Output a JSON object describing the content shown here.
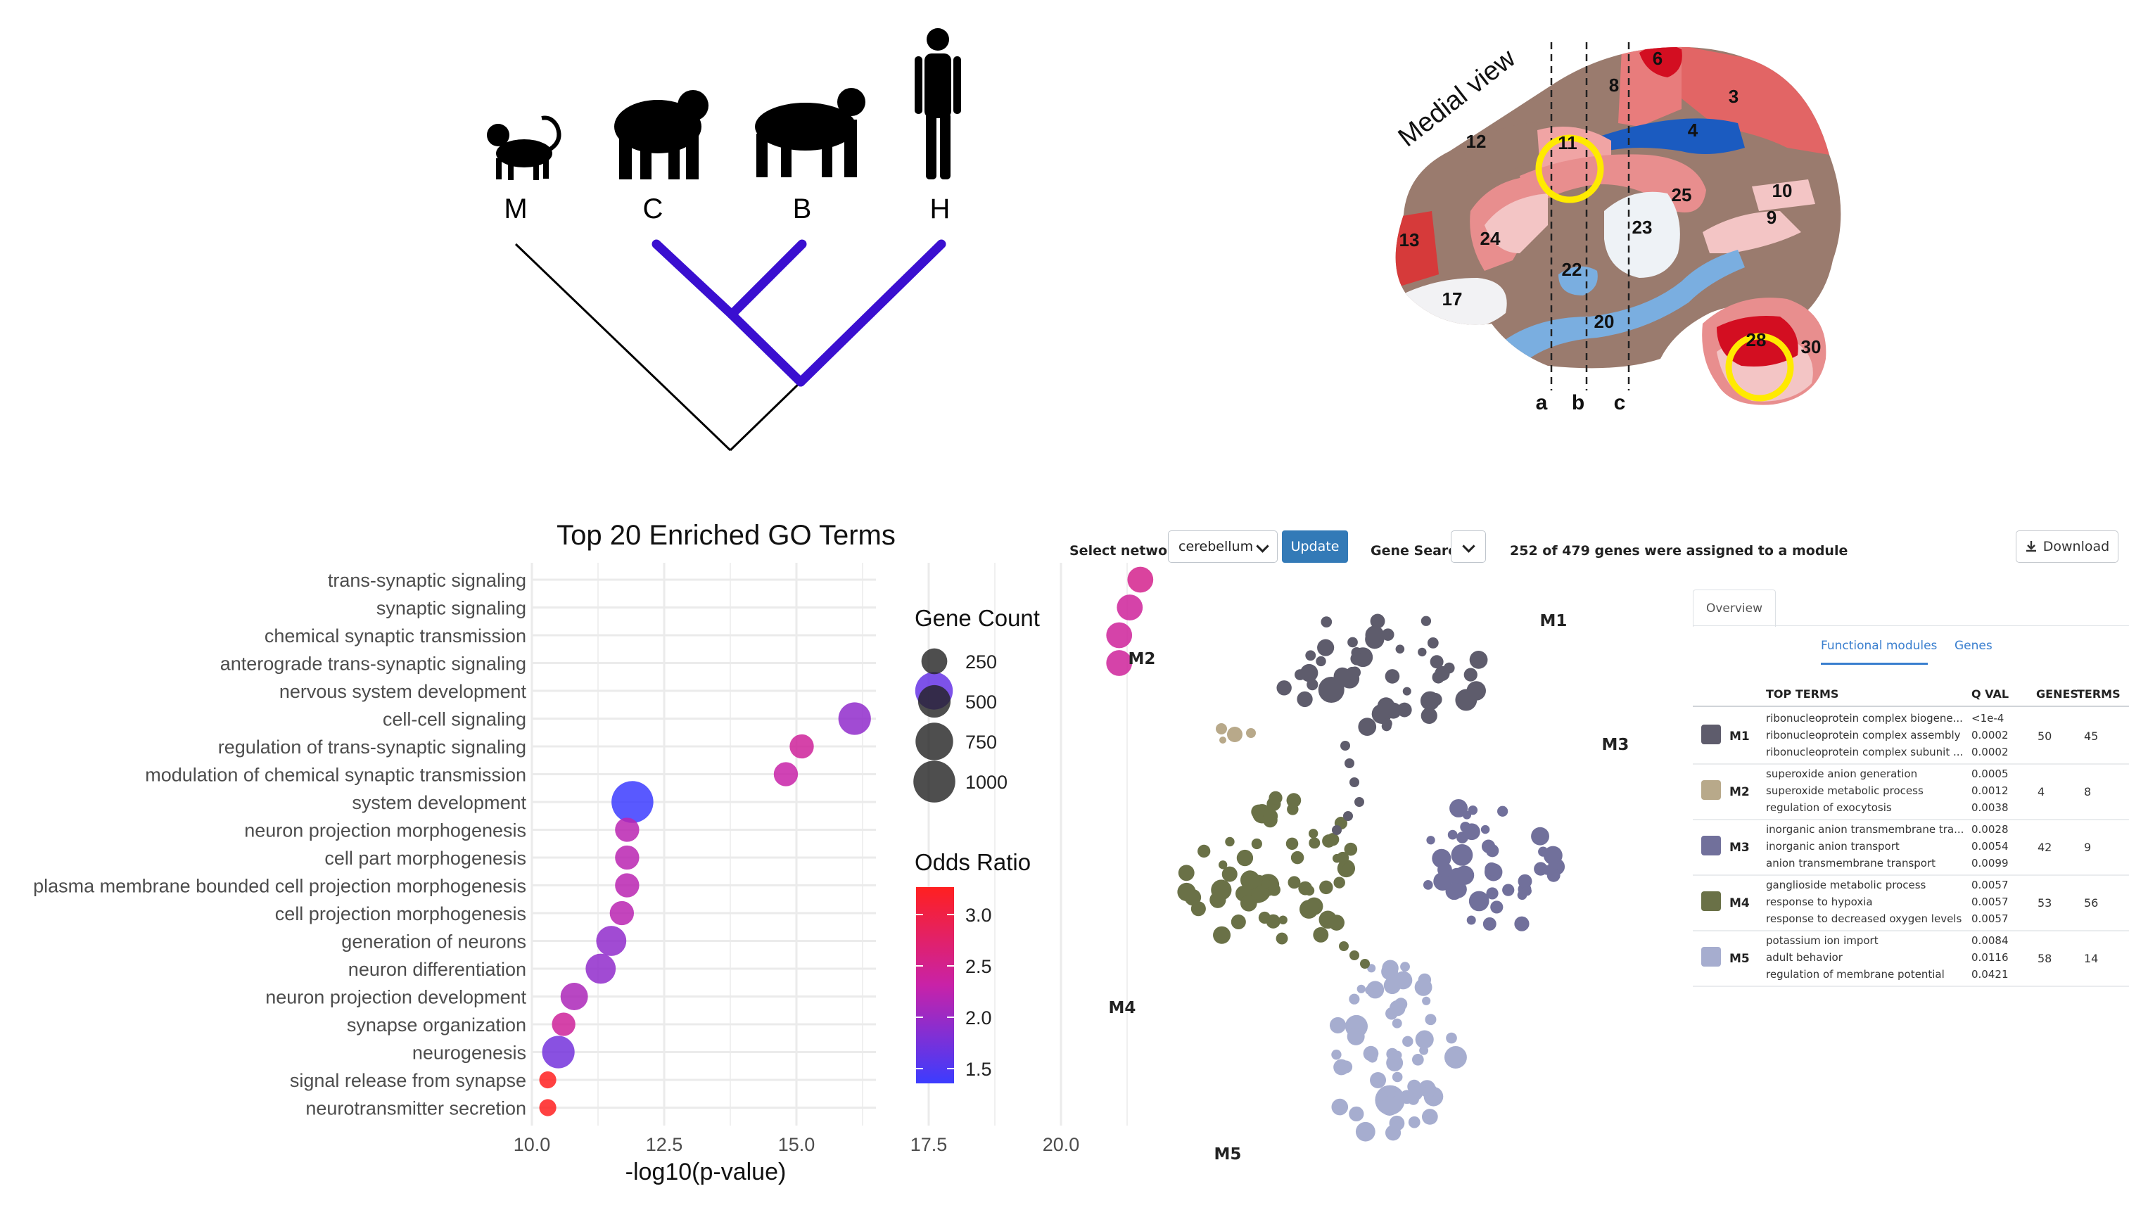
{
  "phylogeny": {
    "species": [
      "M",
      "C",
      "B",
      "H"
    ],
    "highlight_color": "#3a0fd0"
  },
  "brain": {
    "view_label": "Medial view",
    "region_numbers": [
      "6",
      "8",
      "3",
      "4",
      "11",
      "12",
      "10",
      "9",
      "25",
      "23",
      "24",
      "13",
      "22",
      "17",
      "20",
      "28",
      "30"
    ],
    "section_labels": [
      "a",
      "b",
      "c"
    ],
    "colors": {
      "background": "#9a7b6e",
      "light_red": "#e88e8e",
      "dark_red": "#d30e21",
      "blue": "#1b5bc0",
      "light_blue": "#7aaee0",
      "pale": "#f2f2f4",
      "highlight": "#ffea00"
    }
  },
  "go_chart": {
    "chart_data": {
      "type": "scatter",
      "title": "Top 20 Enriched GO Terms",
      "xlabel": "-log10(p-value)",
      "ylabel": "",
      "xlim": [
        10,
        22
      ],
      "xticks": [
        "10.0",
        "12.5",
        "15.0",
        "17.5",
        "20.0"
      ],
      "categories": [
        "trans-synaptic signaling",
        "synaptic signaling",
        "chemical synaptic transmission",
        "anterograde trans-synaptic signaling",
        "nervous system development",
        "cell-cell signaling",
        "regulation of trans-synaptic signaling",
        "modulation of chemical synaptic transmission",
        "system development",
        "neuron projection morphogenesis",
        "cell part morphogenesis",
        "plasma membrane bounded cell projection morphogenesis",
        "cell projection morphogenesis",
        "generation of neurons",
        "neuron differentiation",
        "neuron projection development",
        "synapse organization",
        "neurogenesis",
        "signal release from synapse",
        "neurotransmitter secretion"
      ],
      "x": [
        21.5,
        21.3,
        21.1,
        21.1,
        17.6,
        16.1,
        15.1,
        14.8,
        11.9,
        11.8,
        11.8,
        11.8,
        11.7,
        11.5,
        11.3,
        10.8,
        10.6,
        10.5,
        10.3,
        10.3
      ],
      "gene_count": [
        250,
        250,
        250,
        250,
        750,
        500,
        200,
        200,
        1000,
        200,
        200,
        200,
        200,
        400,
        400,
        300,
        180,
        500,
        50,
        50
      ],
      "odds_ratio": [
        2.5,
        2.4,
        2.4,
        2.4,
        1.6,
        1.9,
        2.4,
        2.3,
        1.3,
        2.2,
        2.2,
        2.2,
        2.2,
        1.9,
        1.9,
        2.1,
        2.4,
        1.7,
        3.3,
        3.3
      ],
      "legend_size": {
        "title": "Gene Count",
        "values": [
          "250",
          "500",
          "750",
          "1000"
        ]
      },
      "legend_color": {
        "title": "Odds Ratio",
        "values": [
          "3.0",
          "2.5",
          "2.0",
          "1.5"
        ],
        "colors": [
          "#ff2020",
          "#c822a8",
          "#3c3cff"
        ]
      },
      "grid": true,
      "legend_position": "right"
    }
  },
  "network_ui": {
    "toolbar": {
      "network_label": "Select network:",
      "network_value": "cerebellum",
      "update_label": "Update",
      "gene_search_label": "Gene Search:",
      "status_text": "252 of 479 genes were assigned to a module",
      "download_label": "Download"
    },
    "graph": {
      "module_labels": [
        "M1",
        "M2",
        "M3",
        "M4",
        "M5"
      ],
      "colors": {
        "M1": "#5e5c6c",
        "M2": "#b8a98a",
        "M3": "#71709b",
        "M4": "#6a7147",
        "M5": "#a6adcf"
      }
    },
    "tabs": {
      "overview": "Overview",
      "functional_modules": "Functional modules",
      "genes": "Genes"
    },
    "table": {
      "headers": [
        "TOP TERMS",
        "Q VAL",
        "GENES",
        "TERMS"
      ],
      "rows": [
        {
          "module": "M1",
          "color": "#5e5c6c",
          "terms": [
            "ribonucleoprotein complex biogene...",
            "ribonucleoprotein complex assembly",
            "ribonucleoprotein complex subunit ..."
          ],
          "qvals": [
            "<1e-4",
            "0.0002",
            "0.0002"
          ],
          "genes": "50",
          "n_terms": "45"
        },
        {
          "module": "M2",
          "color": "#b8a98a",
          "terms": [
            "superoxide anion generation",
            "superoxide metabolic process",
            "regulation of exocytosis"
          ],
          "qvals": [
            "0.0005",
            "0.0012",
            "0.0038"
          ],
          "genes": "4",
          "n_terms": "8"
        },
        {
          "module": "M3",
          "color": "#71709b",
          "terms": [
            "inorganic anion transmembrane tra...",
            "inorganic anion transport",
            "anion transmembrane transport"
          ],
          "qvals": [
            "0.0028",
            "0.0054",
            "0.0099"
          ],
          "genes": "42",
          "n_terms": "9"
        },
        {
          "module": "M4",
          "color": "#6a7147",
          "terms": [
            "ganglioside metabolic process",
            "response to hypoxia",
            "response to decreased oxygen levels"
          ],
          "qvals": [
            "0.0057",
            "0.0057",
            "0.0057"
          ],
          "genes": "53",
          "n_terms": "56"
        },
        {
          "module": "M5",
          "color": "#a6adcf",
          "terms": [
            "potassium ion import",
            "adult behavior",
            "regulation of membrane potential"
          ],
          "qvals": [
            "0.0084",
            "0.0116",
            "0.0421"
          ],
          "genes": "58",
          "n_terms": "14"
        }
      ]
    }
  }
}
